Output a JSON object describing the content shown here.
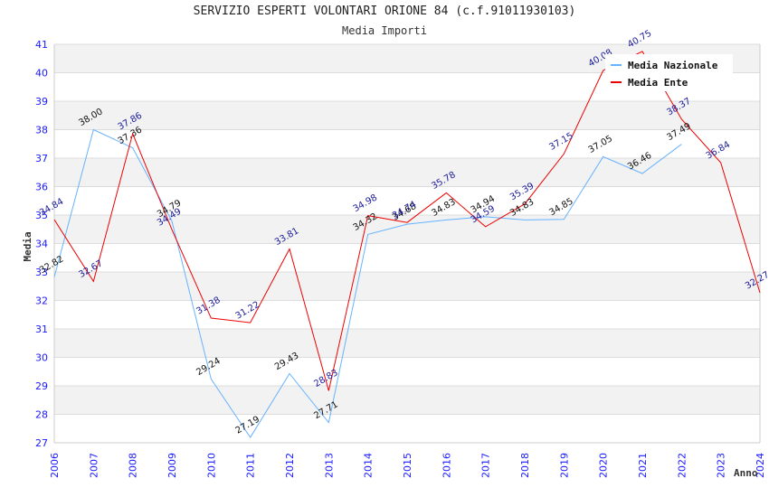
{
  "chart_data": {
    "type": "line",
    "title": "SERVIZIO ESPERTI VOLONTARI ORIONE 84 (c.f.91011930103)",
    "subtitle": "Media Importi",
    "xlabel": "Anno",
    "ylabel": "Media",
    "xlim": [
      2006,
      2024
    ],
    "ylim": [
      27,
      41
    ],
    "yticks": [
      "27",
      "28",
      "29",
      "30",
      "31",
      "32",
      "33",
      "34",
      "35",
      "36",
      "37",
      "38",
      "39",
      "40",
      "41"
    ],
    "xticks": [
      "2006",
      "2007",
      "2008",
      "2009",
      "2010",
      "2011",
      "2012",
      "2013",
      "2014",
      "2015",
      "2016",
      "2017",
      "2018",
      "2019",
      "2020",
      "2021",
      "2022",
      "2023",
      "2024"
    ],
    "grid": true,
    "legend_position": "top-right",
    "series": [
      {
        "name": "Media Nazionale",
        "color": "#66b3ff",
        "label_color": "#111111",
        "x": [
          2006,
          2007,
          2008,
          2009,
          2010,
          2011,
          2012,
          2013,
          2014,
          2015,
          2016,
          2017,
          2018,
          2019,
          2020,
          2021,
          2022
        ],
        "values": [
          32.82,
          38.0,
          37.36,
          34.79,
          29.24,
          27.19,
          29.43,
          27.71,
          34.32,
          34.68,
          34.83,
          34.94,
          34.83,
          34.85,
          37.05,
          36.46,
          37.49
        ],
        "labels": [
          "32.82",
          "38.00",
          "37.36",
          "34.79",
          "29.24",
          "27.19",
          "29.43",
          "27.71",
          "34.32",
          "34.68",
          "34.83",
          "34.94",
          "34.83",
          "34.85",
          "37.05",
          "36.46",
          "37.49"
        ]
      },
      {
        "name": "Media Ente",
        "color": "#ee0000",
        "label_color": "#1a1a9a",
        "x": [
          2006,
          2007,
          2008,
          2009,
          2010,
          2011,
          2012,
          2013,
          2014,
          2015,
          2016,
          2017,
          2018,
          2019,
          2020,
          2021,
          2022,
          2023,
          2024
        ],
        "values": [
          34.84,
          32.67,
          37.86,
          34.49,
          31.38,
          31.22,
          33.81,
          28.83,
          34.98,
          34.74,
          35.78,
          34.59,
          35.39,
          37.15,
          40.08,
          40.75,
          38.37,
          36.84,
          32.27
        ],
        "labels": [
          "34.84",
          "32.67",
          "37.86",
          "34.49",
          "31.38",
          "31.22",
          "33.81",
          "28.83",
          "34.98",
          "34.74",
          "35.78",
          "34.59",
          "35.39",
          "37.15",
          "40.08",
          "40.75",
          "38.37",
          "36.84",
          "32.27"
        ]
      }
    ]
  }
}
